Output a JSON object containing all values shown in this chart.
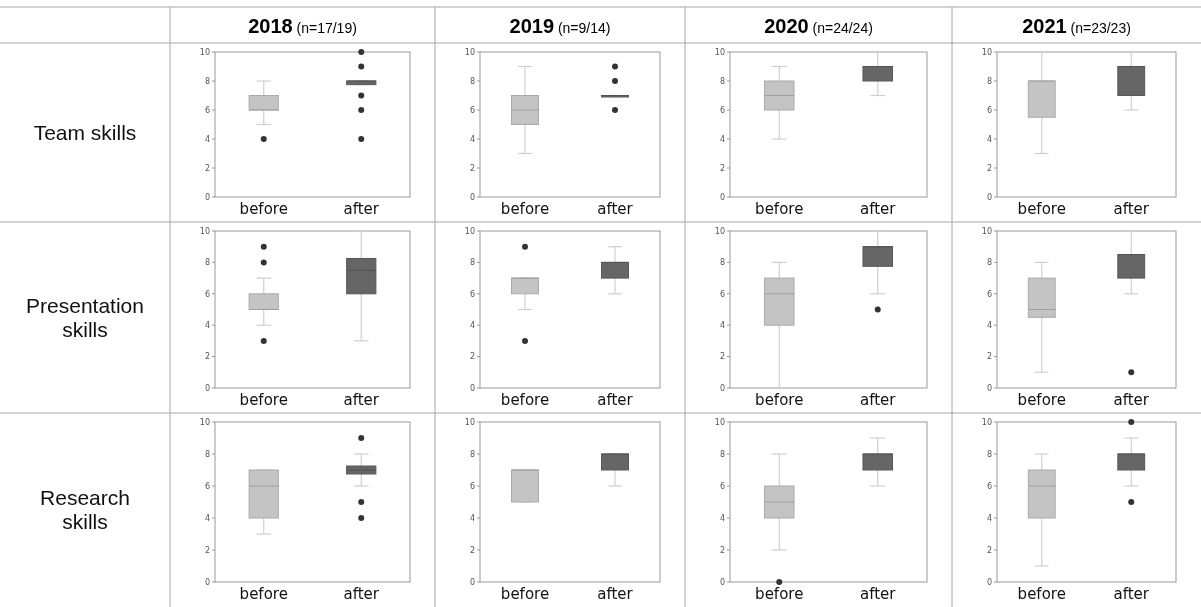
{
  "chart_data": [
    {
      "type": "box",
      "title": "2018 (n=17/19)",
      "ylabel": "Team skills",
      "categories": [
        "before",
        "after"
      ],
      "colors": [
        "#c4c4c4",
        "#666666"
      ],
      "ylim": [
        0,
        10
      ],
      "yticks": [
        0,
        2,
        4,
        6,
        8,
        10
      ],
      "boxes": [
        {
          "low": 5,
          "q1": 6,
          "median": 6,
          "q3": 7,
          "high": 8,
          "outliers": [
            4
          ]
        },
        {
          "low": 7.75,
          "q1": 7.75,
          "median": 8,
          "q3": 8,
          "high": 8,
          "outliers": [
            10,
            9,
            7,
            6,
            4
          ]
        }
      ]
    },
    {
      "type": "box",
      "title": "2019 (n=9/14)",
      "categories": [
        "before",
        "after"
      ],
      "colors": [
        "#c4c4c4",
        "#666666"
      ],
      "ylim": [
        0,
        10
      ],
      "yticks": [
        0,
        2,
        4,
        6,
        8,
        10
      ],
      "boxes": [
        {
          "low": 3,
          "q1": 5,
          "median": 6,
          "q3": 7,
          "high": 9
        },
        {
          "low": 7,
          "q1": 7,
          "median": 7,
          "q3": 7,
          "high": 7,
          "outliers": [
            9,
            8,
            6
          ]
        }
      ]
    },
    {
      "type": "box",
      "title": "2020 (n=24/24)",
      "categories": [
        "before",
        "after"
      ],
      "colors": [
        "#c4c4c4",
        "#666666"
      ],
      "ylim": [
        0,
        10
      ],
      "yticks": [
        0,
        2,
        4,
        6,
        8,
        10
      ],
      "boxes": [
        {
          "low": 4,
          "q1": 6,
          "median": 7,
          "q3": 8,
          "high": 9
        },
        {
          "low": 7,
          "q1": 8,
          "median": 9,
          "q3": 9,
          "high": 10
        }
      ]
    },
    {
      "type": "box",
      "title": "2021 (n=23/23)",
      "categories": [
        "before",
        "after"
      ],
      "colors": [
        "#c4c4c4",
        "#666666"
      ],
      "ylim": [
        0,
        10
      ],
      "yticks": [
        0,
        2,
        4,
        6,
        8,
        10
      ],
      "boxes": [
        {
          "low": 3,
          "q1": 5.5,
          "median": 8,
          "q3": 8,
          "high": 10
        },
        {
          "low": 6,
          "q1": 7,
          "median": 9,
          "q3": 9,
          "high": 10
        }
      ]
    },
    {
      "type": "box",
      "ylabel": "Presentation skills",
      "categories": [
        "before",
        "after"
      ],
      "colors": [
        "#c4c4c4",
        "#666666"
      ],
      "ylim": [
        0,
        10
      ],
      "yticks": [
        0,
        2,
        4,
        6,
        8,
        10
      ],
      "boxes": [
        {
          "low": 4,
          "q1": 5,
          "median": 5,
          "q3": 6,
          "high": 7,
          "outliers": [
            9,
            8,
            3
          ]
        },
        {
          "low": 3,
          "q1": 6,
          "median": 7.5,
          "q3": 8.25,
          "high": 10
        }
      ]
    },
    {
      "type": "box",
      "categories": [
        "before",
        "after"
      ],
      "colors": [
        "#c4c4c4",
        "#666666"
      ],
      "ylim": [
        0,
        10
      ],
      "yticks": [
        0,
        2,
        4,
        6,
        8,
        10
      ],
      "boxes": [
        {
          "low": 5,
          "q1": 6,
          "median": 7,
          "q3": 7,
          "high": 7,
          "outliers": [
            9,
            3
          ]
        },
        {
          "low": 6,
          "q1": 7,
          "median": 8,
          "q3": 8,
          "high": 9
        }
      ]
    },
    {
      "type": "box",
      "categories": [
        "before",
        "after"
      ],
      "colors": [
        "#c4c4c4",
        "#666666"
      ],
      "ylim": [
        0,
        10
      ],
      "yticks": [
        0,
        2,
        4,
        6,
        8,
        10
      ],
      "boxes": [
        {
          "low": 0,
          "q1": 4,
          "median": 6,
          "q3": 7,
          "high": 8
        },
        {
          "low": 6,
          "q1": 7.75,
          "median": 9,
          "q3": 9,
          "high": 10,
          "outliers": [
            5
          ]
        }
      ]
    },
    {
      "type": "box",
      "categories": [
        "before",
        "after"
      ],
      "colors": [
        "#c4c4c4",
        "#666666"
      ],
      "ylim": [
        0,
        10
      ],
      "yticks": [
        0,
        2,
        4,
        6,
        8,
        10
      ],
      "boxes": [
        {
          "low": 1,
          "q1": 4.5,
          "median": 5,
          "q3": 7,
          "high": 8
        },
        {
          "low": 6,
          "q1": 7,
          "median": 8.5,
          "q3": 8.5,
          "high": 10,
          "outliers": [
            1
          ]
        }
      ]
    },
    {
      "type": "box",
      "ylabel": "Research skills",
      "categories": [
        "before",
        "after"
      ],
      "colors": [
        "#c4c4c4",
        "#666666"
      ],
      "ylim": [
        0,
        10
      ],
      "yticks": [
        0,
        2,
        4,
        6,
        8,
        10
      ],
      "boxes": [
        {
          "low": 3,
          "q1": 4,
          "median": 6,
          "q3": 7,
          "high": 7
        },
        {
          "low": 6,
          "q1": 6.75,
          "median": 7,
          "q3": 7.25,
          "high": 8,
          "outliers": [
            9,
            5,
            4
          ]
        }
      ]
    },
    {
      "type": "box",
      "categories": [
        "before",
        "after"
      ],
      "colors": [
        "#c4c4c4",
        "#666666"
      ],
      "ylim": [
        0,
        10
      ],
      "yticks": [
        0,
        2,
        4,
        6,
        8,
        10
      ],
      "boxes": [
        {
          "low": 5,
          "q1": 5,
          "median": 7,
          "q3": 7,
          "high": 7
        },
        {
          "low": 6,
          "q1": 7,
          "median": 8,
          "q3": 8,
          "high": 8
        }
      ]
    },
    {
      "type": "box",
      "categories": [
        "before",
        "after"
      ],
      "colors": [
        "#c4c4c4",
        "#666666"
      ],
      "ylim": [
        0,
        10
      ],
      "yticks": [
        0,
        2,
        4,
        6,
        8,
        10
      ],
      "boxes": [
        {
          "low": 2,
          "q1": 4,
          "median": 5,
          "q3": 6,
          "high": 8,
          "outliers": [
            0
          ]
        },
        {
          "low": 6,
          "q1": 7,
          "median": 8,
          "q3": 8,
          "high": 9
        }
      ]
    },
    {
      "type": "box",
      "categories": [
        "before",
        "after"
      ],
      "colors": [
        "#c4c4c4",
        "#666666"
      ],
      "ylim": [
        0,
        10
      ],
      "yticks": [
        0,
        2,
        4,
        6,
        8,
        10
      ],
      "boxes": [
        {
          "low": 1,
          "q1": 4,
          "median": 6,
          "q3": 7,
          "high": 8
        },
        {
          "low": 6,
          "q1": 7,
          "median": 8,
          "q3": 8,
          "high": 9,
          "outliers": [
            10,
            5
          ]
        }
      ]
    }
  ]
}
